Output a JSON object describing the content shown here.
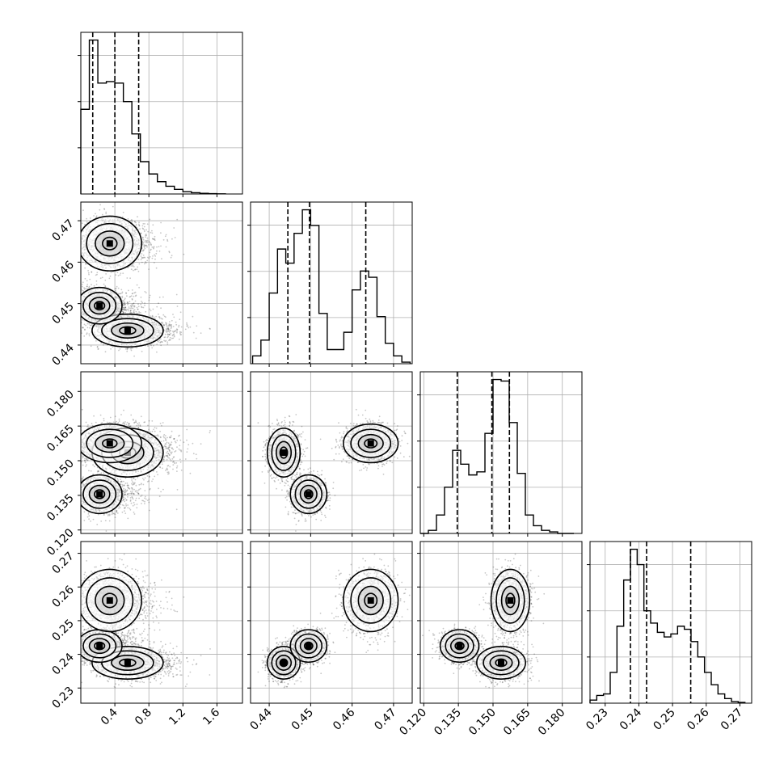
{
  "chart_data": {
    "type": "corner",
    "colors": {
      "hist": "#000000",
      "quantile": "#000000",
      "points": "#000000",
      "grid": "#b0b0b0"
    },
    "grid": true,
    "parameters": [
      {
        "range": [
          0.0,
          1.9
        ],
        "ticks": [
          0.4,
          0.8,
          1.2,
          1.6
        ],
        "tick_labels": [
          "0.4",
          "0.8",
          "1.2",
          "1.6"
        ],
        "quantiles": [
          0.14,
          0.4,
          0.68
        ]
      },
      {
        "range": [
          0.4355,
          0.4745
        ],
        "ticks": [
          0.44,
          0.45,
          0.46,
          0.47
        ],
        "tick_labels": [
          "0.44",
          "0.45",
          "0.46",
          "0.47"
        ],
        "quantiles": [
          0.4445,
          0.4497,
          0.4633
        ]
      },
      {
        "range": [
          0.1185,
          0.1885
        ],
        "ticks": [
          0.12,
          0.135,
          0.15,
          0.165,
          0.18
        ],
        "tick_labels": [
          "0.120",
          "0.135",
          "0.150",
          "0.165",
          "0.180"
        ],
        "quantiles": [
          0.1345,
          0.1495,
          0.1571
        ]
      },
      {
        "range": [
          0.2255,
          0.2735
        ],
        "ticks": [
          0.23,
          0.24,
          0.25,
          0.26,
          0.27
        ],
        "tick_labels": [
          "0.23",
          "0.24",
          "0.25",
          "0.26",
          "0.27"
        ],
        "quantiles": [
          0.2375,
          0.2423,
          0.2554
        ]
      }
    ],
    "histograms": [
      {
        "bin_edges": [
          0.0,
          0.1,
          0.2,
          0.3,
          0.4,
          0.5,
          0.6,
          0.7,
          0.8,
          0.9,
          1.0,
          1.1,
          1.2,
          1.3,
          1.4,
          1.5,
          1.6,
          1.7
        ],
        "counts": [
          0.55,
          1.0,
          0.72,
          0.73,
          0.72,
          0.6,
          0.39,
          0.21,
          0.13,
          0.08,
          0.05,
          0.03,
          0.015,
          0.008,
          0.004,
          0.002,
          0.001
        ]
      },
      {
        "bin_edges": [
          0.436,
          0.438,
          0.44,
          0.442,
          0.444,
          0.446,
          0.448,
          0.45,
          0.452,
          0.454,
          0.456,
          0.458,
          0.46,
          0.462,
          0.464,
          0.466,
          0.468,
          0.47,
          0.472,
          0.474
        ],
        "counts": [
          0.05,
          0.15,
          0.45,
          0.73,
          0.64,
          0.83,
          0.98,
          0.88,
          0.32,
          0.09,
          0.09,
          0.2,
          0.47,
          0.59,
          0.55,
          0.3,
          0.13,
          0.05,
          0.01
        ]
      },
      {
        "bin_edges": [
          0.1185,
          0.122,
          0.1255,
          0.129,
          0.1325,
          0.136,
          0.1395,
          0.143,
          0.1465,
          0.15,
          0.1535,
          0.157,
          0.1605,
          0.164,
          0.1675,
          0.171,
          0.1745,
          0.178,
          0.1815,
          0.185
        ],
        "counts": [
          0.0,
          0.02,
          0.12,
          0.3,
          0.54,
          0.45,
          0.38,
          0.4,
          0.65,
          1.0,
          0.99,
          0.72,
          0.39,
          0.12,
          0.05,
          0.02,
          0.01,
          0.0,
          0.0
        ]
      },
      {
        "bin_edges": [
          0.2255,
          0.2275,
          0.2295,
          0.2315,
          0.2335,
          0.2355,
          0.2375,
          0.2395,
          0.2415,
          0.2435,
          0.2455,
          0.2475,
          0.2495,
          0.2515,
          0.2535,
          0.2555,
          0.2575,
          0.2595,
          0.2615,
          0.2635,
          0.2655,
          0.2675,
          0.2695,
          0.2715
        ],
        "counts": [
          0.02,
          0.05,
          0.06,
          0.2,
          0.5,
          0.8,
          1.0,
          0.9,
          0.6,
          0.52,
          0.46,
          0.43,
          0.45,
          0.5,
          0.48,
          0.4,
          0.3,
          0.2,
          0.12,
          0.06,
          0.03,
          0.01,
          0.005
        ]
      }
    ],
    "clusters": [
      {
        "weight": 0.33,
        "mean": [
          0.55,
          0.4435,
          0.1535,
          0.2375
        ],
        "sd": [
          0.19,
          0.0018,
          0.0048,
          0.0022
        ]
      },
      {
        "weight": 0.32,
        "mean": [
          0.22,
          0.4495,
          0.1355,
          0.2425
        ],
        "sd": [
          0.12,
          0.002,
          0.0038,
          0.0022
        ]
      },
      {
        "weight": 0.35,
        "mean": [
          0.34,
          0.4645,
          0.1575,
          0.256
        ],
        "sd": [
          0.17,
          0.003,
          0.0038,
          0.0042
        ]
      }
    ]
  }
}
